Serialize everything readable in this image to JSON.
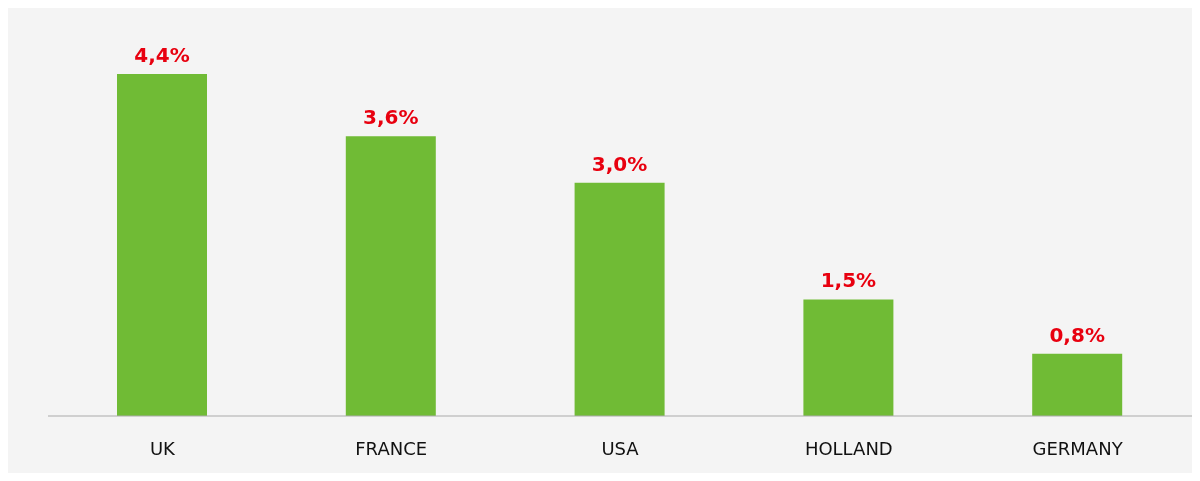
{
  "chart_data": {
    "type": "bar",
    "categories": [
      "UK",
      "FRANCE",
      "USA",
      "HOLLAND",
      "GERMANY"
    ],
    "values": [
      4.4,
      3.6,
      3.0,
      1.5,
      0.8
    ],
    "color": "#70bb35",
    "value_labels": [
      "4,4%",
      "3,6%",
      "3,0%",
      "1,5%",
      "0,8%"
    ]
  }
}
